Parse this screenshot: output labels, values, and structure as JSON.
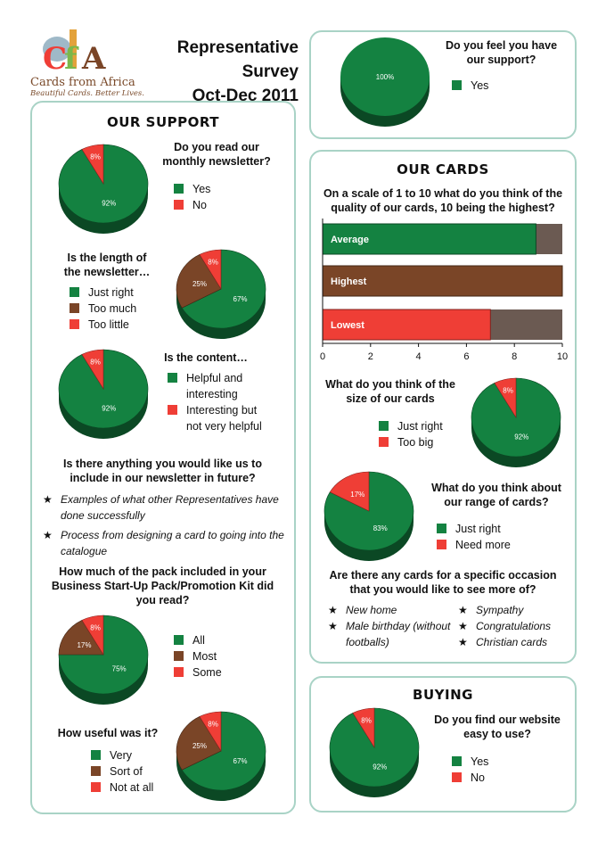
{
  "header": {
    "title_line1": "Representative Survey",
    "title_line2": "Oct-Dec 2011"
  },
  "logo": {
    "text": "Cards from Africa",
    "tagline": "Beautiful Cards. Better Lives."
  },
  "colors": {
    "green": "#148241",
    "red": "#ef3e36",
    "brown": "#7a4527",
    "grey": "#6b5a52",
    "panel_border": "#a9d3c6"
  },
  "sections": {
    "support_top": {
      "question": "Do you feel you have our support?",
      "legend": [
        "Yes"
      ]
    },
    "our_support": {
      "title": "OUR SUPPORT",
      "q1": {
        "question": "Do you read our monthly newsletter?",
        "legend": [
          "Yes",
          "No"
        ]
      },
      "q2": {
        "question": "Is the length of the newsletter…",
        "legend": [
          "Just right",
          "Too much",
          "Too little"
        ]
      },
      "q3": {
        "question": "Is the content…",
        "legend": [
          "Helpful and interesting",
          "Interesting but not very helpful"
        ]
      },
      "q4": {
        "question": "Is there anything you would like us to include in our newsletter in future?",
        "answers": [
          "Examples of what other Representatives have done successfully",
          "Process from designing a card to going into the catalogue"
        ]
      },
      "q5": {
        "question": "How much of the pack included in your Business Start-Up Pack/Promotion Kit did you read?",
        "legend": [
          "All",
          "Most",
          "Some"
        ]
      },
      "q6": {
        "question": "How useful was it?",
        "legend": [
          "Very",
          "Sort of",
          "Not at all"
        ]
      }
    },
    "our_cards": {
      "title": "OUR CARDS",
      "q1": {
        "question": "On a scale of 1 to 10 what do you think of the quality of our cards, 10 being the highest?"
      },
      "q2": {
        "question": "What do you think of the size of our cards",
        "legend": [
          "Just right",
          "Too big"
        ]
      },
      "q3": {
        "question": "What do you think about our range of cards?",
        "legend": [
          "Just right",
          "Need more"
        ]
      },
      "q4": {
        "question": "Are there any cards for a specific occasion that you would like to see more of?",
        "answers_left": [
          "New home",
          "Male birthday (without footballs)"
        ],
        "answers_right": [
          "Sympathy",
          "Congratulations",
          "Christian cards"
        ]
      }
    },
    "buying": {
      "title": "BUYING",
      "q1": {
        "question": "Do you find our website easy to use?",
        "legend": [
          "Yes",
          "No"
        ]
      }
    }
  },
  "chart_data": [
    {
      "id": "support",
      "type": "pie",
      "labels": [
        "Yes"
      ],
      "values": [
        100
      ],
      "value_labels": [
        "100%"
      ]
    },
    {
      "id": "newsletter_read",
      "type": "pie",
      "labels": [
        "Yes",
        "No"
      ],
      "values": [
        92,
        8
      ],
      "value_labels": [
        "92%",
        "8%"
      ]
    },
    {
      "id": "newsletter_length",
      "type": "pie",
      "labels": [
        "Just right",
        "Too much",
        "Too little"
      ],
      "values": [
        67,
        25,
        8
      ],
      "value_labels": [
        "67%",
        "25%",
        "8%"
      ]
    },
    {
      "id": "newsletter_content",
      "type": "pie",
      "labels": [
        "Helpful and interesting",
        "Interesting but not very helpful"
      ],
      "values": [
        92,
        8
      ],
      "value_labels": [
        "92%",
        "8%"
      ]
    },
    {
      "id": "pack_read",
      "type": "pie",
      "labels": [
        "All",
        "Most",
        "Some"
      ],
      "values": [
        75,
        17,
        8
      ],
      "value_labels": [
        "75%",
        "17%",
        "8%"
      ]
    },
    {
      "id": "pack_useful",
      "type": "pie",
      "labels": [
        "Very",
        "Sort of",
        "Not at all"
      ],
      "values": [
        67,
        25,
        8
      ],
      "value_labels": [
        "67%",
        "25%",
        "8%"
      ]
    },
    {
      "id": "quality",
      "type": "bar",
      "orientation": "horizontal",
      "categories": [
        "Average",
        "Highest",
        "Lowest"
      ],
      "values": [
        8.9,
        10,
        7
      ],
      "xlim": [
        0,
        10
      ],
      "xticks": [
        "0",
        "2",
        "4",
        "6",
        "8",
        "10"
      ]
    },
    {
      "id": "card_size",
      "type": "pie",
      "labels": [
        "Just right",
        "Too big"
      ],
      "values": [
        92,
        8
      ],
      "value_labels": [
        "92%",
        "8%"
      ]
    },
    {
      "id": "card_range",
      "type": "pie",
      "labels": [
        "Just right",
        "Need more"
      ],
      "values": [
        83,
        17
      ],
      "value_labels": [
        "83%",
        "17%"
      ]
    },
    {
      "id": "website",
      "type": "pie",
      "labels": [
        "Yes",
        "No"
      ],
      "values": [
        92,
        8
      ],
      "value_labels": [
        "92%",
        "8%"
      ]
    }
  ]
}
